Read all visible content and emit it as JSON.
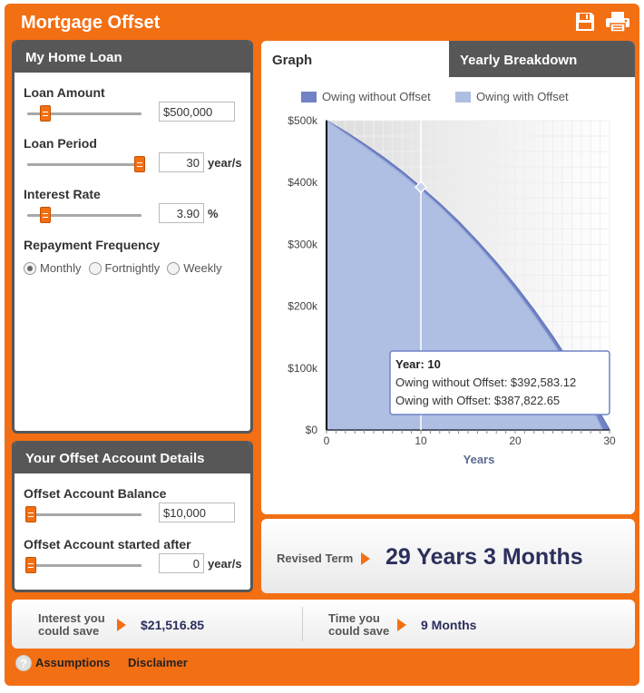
{
  "app": {
    "title": "Mortgage Offset"
  },
  "icons": {
    "save": "save-icon",
    "print": "print-icon"
  },
  "home_loan": {
    "heading": "My Home Loan",
    "loan_amount": {
      "label": "Loan Amount",
      "value": "$500,000"
    },
    "loan_period": {
      "label": "Loan Period",
      "value": "30",
      "unit": "year/s"
    },
    "interest_rate": {
      "label": "Interest Rate",
      "value": "3.90",
      "unit": "%"
    },
    "frequency": {
      "label": "Repayment Frequency",
      "options": [
        "Monthly",
        "Fortnightly",
        "Weekly"
      ],
      "selected": "Monthly"
    }
  },
  "offset": {
    "heading": "Your Offset Account Details",
    "balance": {
      "label": "Offset Account Balance",
      "value": "$10,000"
    },
    "started": {
      "label": "Offset Account started after",
      "value": "0",
      "unit": "year/s"
    }
  },
  "tabs": {
    "graph": "Graph",
    "breakdown": "Yearly Breakdown"
  },
  "chart_data": {
    "type": "area",
    "xlabel": "Years",
    "ylabel": "",
    "x_ticks": [
      0,
      10,
      20,
      30
    ],
    "y_tick_labels": [
      "$0",
      "$100k",
      "$200k",
      "$300k",
      "$400k",
      "$500k"
    ],
    "xlim": [
      0,
      30
    ],
    "ylim": [
      0,
      500000
    ],
    "grid": true,
    "legend_position": "top",
    "series": [
      {
        "name": "Owing without Offset",
        "color": "#7183c5",
        "x": [
          0,
          2,
          4,
          6,
          8,
          10,
          12,
          14,
          16,
          18,
          20,
          22,
          24,
          26,
          28,
          30
        ],
        "values": [
          500000,
          482000,
          462000,
          441000,
          418000,
          392583,
          366000,
          337000,
          305000,
          271000,
          234000,
          194000,
          151000,
          104000,
          54000,
          0
        ]
      },
      {
        "name": "Owing with Offset",
        "color": "#afbfe3",
        "x": [
          0,
          2,
          4,
          6,
          8,
          10,
          12,
          14,
          16,
          18,
          20,
          22,
          24,
          26,
          28,
          29.25
        ],
        "values": [
          500000,
          479000,
          458000,
          436000,
          413000,
          387823,
          361000,
          331000,
          299000,
          264000,
          226000,
          185000,
          141000,
          93000,
          41000,
          0
        ]
      }
    ],
    "tooltip": {
      "title": "Year: 10",
      "line1": "Owing without Offset: $392,583.12",
      "line2": "Owing with Offset: $387,822.65",
      "x": 10
    }
  },
  "result": {
    "term_label": "Revised Term",
    "term_value": "29 Years 3 Months",
    "interest_label_1": "Interest you",
    "interest_label_2": "could save",
    "interest_value": "$21,516.85",
    "time_label_1": "Time you",
    "time_label_2": "could save",
    "time_value": "9 Months"
  },
  "footer": {
    "help_glyph": "?",
    "assumptions": "Assumptions",
    "disclaimer": "Disclaimer"
  }
}
